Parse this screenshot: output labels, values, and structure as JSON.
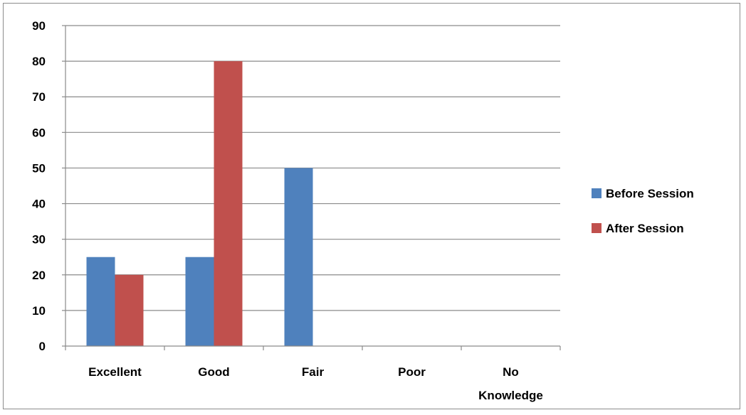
{
  "chart_data": {
    "type": "bar",
    "categories": [
      [
        "Excellent"
      ],
      [
        "Good"
      ],
      [
        "Fair"
      ],
      [
        "Poor"
      ],
      [
        "No",
        "Knowledge"
      ]
    ],
    "series": [
      {
        "name": "Before Session",
        "values": [
          25,
          25,
          50,
          0,
          0
        ],
        "color": "#4f81bd"
      },
      {
        "name": "After Session",
        "values": [
          20,
          80,
          0,
          0,
          0
        ],
        "color": "#c0504d"
      }
    ],
    "ylim": [
      0,
      90
    ],
    "yticks": [
      0,
      10,
      20,
      30,
      40,
      50,
      60,
      70,
      80,
      90
    ],
    "grid": true,
    "legend": "right"
  }
}
